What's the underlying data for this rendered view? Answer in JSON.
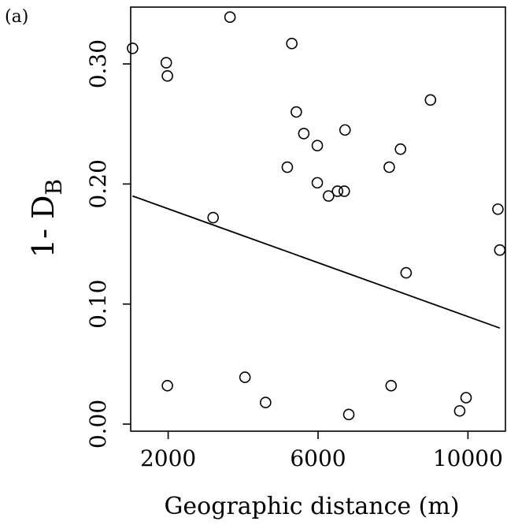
{
  "chart_data": {
    "type": "scatter",
    "panel_label": "(a)",
    "xlabel": "Geographic distance (m)",
    "ylabel_main": "1- D",
    "ylabel_subscript": "B",
    "xlim": [
      1000,
      11000
    ],
    "ylim": [
      0,
      0.35
    ],
    "x_ticks": [
      2000,
      6000,
      10000
    ],
    "x_tick_labels": [
      "2000",
      "6000",
      "10000"
    ],
    "y_ticks": [
      0.0,
      0.1,
      0.2,
      0.3
    ],
    "y_tick_labels": [
      "0.00",
      "0.10",
      "0.20",
      "0.30"
    ],
    "grid": false,
    "colors": {
      "points": "#000000",
      "line": "#000000"
    },
    "series": [
      {
        "type": "scatter",
        "x": [
          1050,
          1950,
          1980,
          3650,
          5300,
          5420,
          5620,
          5980,
          6720,
          5180,
          5980,
          6280,
          6520,
          6700,
          7900,
          8200,
          9000,
          10800,
          10850,
          3200,
          8350,
          1980,
          4050,
          4600,
          6820,
          7950,
          9780,
          9950
        ],
        "y": [
          0.313,
          0.301,
          0.29,
          0.339,
          0.317,
          0.26,
          0.242,
          0.232,
          0.245,
          0.214,
          0.201,
          0.19,
          0.194,
          0.194,
          0.214,
          0.229,
          0.27,
          0.179,
          0.145,
          0.172,
          0.126,
          0.032,
          0.039,
          0.018,
          0.008,
          0.032,
          0.011,
          0.022
        ]
      },
      {
        "type": "line",
        "x": [
          1050,
          10850
        ],
        "y": [
          0.19,
          0.08
        ]
      }
    ]
  }
}
